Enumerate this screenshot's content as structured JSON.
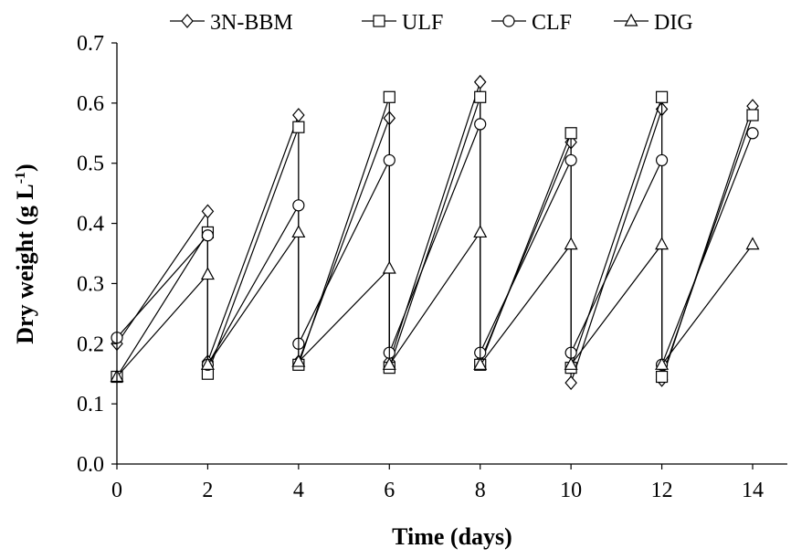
{
  "chart_data": {
    "type": "line",
    "xlabel": "Time (days)",
    "ylabel_main": "Dry weight (g L",
    "ylabel_sup": "-1",
    "ylabel_close": ")",
    "xlim": [
      0,
      14
    ],
    "ylim": [
      0,
      0.7
    ],
    "x_ticks": [
      "0",
      "2",
      "4",
      "6",
      "8",
      "10",
      "12",
      "14"
    ],
    "y_ticks": [
      "0.0",
      "0.1",
      "0.2",
      "0.3",
      "0.4",
      "0.5",
      "0.6",
      "0.7"
    ],
    "grid": false,
    "legend_position": "top",
    "series": [
      {
        "name": "3N-BBM",
        "marker": "diamond",
        "points": [
          [
            0,
            0.2
          ],
          [
            2,
            0.42
          ],
          [
            2,
            0.17
          ],
          [
            4,
            0.58
          ],
          [
            4,
            0.17
          ],
          [
            6,
            0.575
          ],
          [
            6,
            0.17
          ],
          [
            8,
            0.635
          ],
          [
            8,
            0.17
          ],
          [
            10,
            0.535
          ],
          [
            10,
            0.135
          ],
          [
            12,
            0.59
          ],
          [
            12,
            0.14
          ],
          [
            14,
            0.595
          ]
        ]
      },
      {
        "name": "ULF",
        "marker": "square",
        "points": [
          [
            0,
            0.145
          ],
          [
            2,
            0.385
          ],
          [
            2,
            0.15
          ],
          [
            4,
            0.56
          ],
          [
            4,
            0.165
          ],
          [
            6,
            0.61
          ],
          [
            6,
            0.16
          ],
          [
            8,
            0.61
          ],
          [
            8,
            0.165
          ],
          [
            10,
            0.55
          ],
          [
            10,
            0.16
          ],
          [
            12,
            0.61
          ],
          [
            12,
            0.145
          ],
          [
            14,
            0.58
          ]
        ]
      },
      {
        "name": "CLF",
        "marker": "circle",
        "points": [
          [
            0,
            0.21
          ],
          [
            2,
            0.38
          ],
          [
            2,
            0.165
          ],
          [
            4,
            0.43
          ],
          [
            4,
            0.2
          ],
          [
            6,
            0.505
          ],
          [
            6,
            0.185
          ],
          [
            8,
            0.565
          ],
          [
            8,
            0.185
          ],
          [
            10,
            0.505
          ],
          [
            10,
            0.185
          ],
          [
            12,
            0.505
          ],
          [
            12,
            0.165
          ],
          [
            14,
            0.55
          ]
        ]
      },
      {
        "name": "DIG",
        "marker": "triangle",
        "points": [
          [
            0,
            0.145
          ],
          [
            2,
            0.315
          ],
          [
            2,
            0.165
          ],
          [
            4,
            0.385
          ],
          [
            4,
            0.17
          ],
          [
            6,
            0.325
          ],
          [
            6,
            0.165
          ],
          [
            8,
            0.385
          ],
          [
            8,
            0.165
          ],
          [
            10,
            0.365
          ],
          [
            10,
            0.165
          ],
          [
            12,
            0.365
          ],
          [
            12,
            0.165
          ],
          [
            14,
            0.365
          ]
        ]
      }
    ]
  }
}
